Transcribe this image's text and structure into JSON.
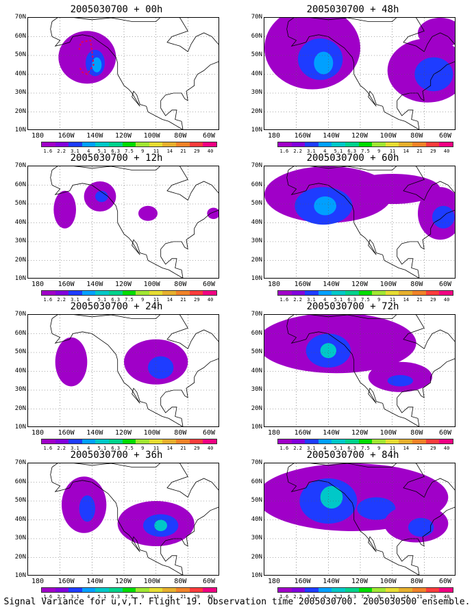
{
  "caption": "Signal Variance for u,v,T. Flight 19. Observation time 2005030700. 2005030500 ensemble.",
  "lat_labels": [
    "70N",
    "60N",
    "50N",
    "40N",
    "30N",
    "20N",
    "10N"
  ],
  "lon_labels": [
    "180",
    "160W",
    "140W",
    "120W",
    "100W",
    "80W",
    "60W"
  ],
  "colorbar": {
    "levels": [
      "1.6",
      "2.2",
      "3.1",
      "4",
      "5.1",
      "6.3",
      "7.5",
      "9",
      "11",
      "14",
      "21",
      "29",
      "40"
    ],
    "colors": [
      "#a000c8",
      "#8200dc",
      "#1e3cff",
      "#00a0ff",
      "#00c8c8",
      "#00d28c",
      "#00dc00",
      "#a0e632",
      "#e6dc32",
      "#e6af2d",
      "#f08228",
      "#fa3c3c",
      "#f00082"
    ]
  },
  "panels": [
    {
      "title": "2005030700 + 00h",
      "blobs": [
        {
          "lon": -143,
          "lat": 49,
          "rx": 18,
          "ry": 14,
          "level": 0
        },
        {
          "lon": -138,
          "lat": 46,
          "rx": 6,
          "ry": 7,
          "level": 2
        },
        {
          "lon": -137,
          "lat": 45,
          "rx": 3,
          "ry": 4,
          "level": 3
        }
      ],
      "track": true
    },
    {
      "title": "2005030700 + 48h",
      "blobs": [
        {
          "lon": -150,
          "lat": 54,
          "rx": 30,
          "ry": 22,
          "level": 0
        },
        {
          "lon": -145,
          "lat": 48,
          "rx": 14,
          "ry": 11,
          "level": 2
        },
        {
          "lon": -143,
          "lat": 46,
          "rx": 6,
          "ry": 6,
          "level": 3
        },
        {
          "lon": -78,
          "lat": 42,
          "rx": 25,
          "ry": 17,
          "level": 0
        },
        {
          "lon": -74,
          "lat": 40,
          "rx": 12,
          "ry": 9,
          "level": 2
        },
        {
          "lon": -70,
          "lat": 62,
          "rx": 14,
          "ry": 8,
          "level": 0
        }
      ]
    },
    {
      "title": "2005030700 + 12h",
      "blobs": [
        {
          "lon": -135,
          "lat": 54,
          "rx": 10,
          "ry": 8,
          "level": 0
        },
        {
          "lon": -134,
          "lat": 54,
          "rx": 4,
          "ry": 3,
          "level": 2
        },
        {
          "lon": -157,
          "lat": 47,
          "rx": 7,
          "ry": 10,
          "level": 0
        },
        {
          "lon": -105,
          "lat": 45,
          "rx": 6,
          "ry": 4,
          "level": 0
        },
        {
          "lon": -64,
          "lat": 45,
          "rx": 4,
          "ry": 3,
          "level": 0
        }
      ]
    },
    {
      "title": "2005030700 + 60h",
      "blobs": [
        {
          "lon": -140,
          "lat": 55,
          "rx": 40,
          "ry": 15,
          "level": 0
        },
        {
          "lon": -143,
          "lat": 49,
          "rx": 18,
          "ry": 10,
          "level": 2
        },
        {
          "lon": -142,
          "lat": 49,
          "rx": 7,
          "ry": 5,
          "level": 3
        },
        {
          "lon": -100,
          "lat": 58,
          "rx": 30,
          "ry": 8,
          "level": 0
        },
        {
          "lon": -70,
          "lat": 45,
          "rx": 14,
          "ry": 14,
          "level": 0
        },
        {
          "lon": -68,
          "lat": 43,
          "rx": 7,
          "ry": 6,
          "level": 2
        }
      ]
    },
    {
      "title": "2005030700 + 24h",
      "blobs": [
        {
          "lon": -153,
          "lat": 45,
          "rx": 10,
          "ry": 13,
          "level": 0
        },
        {
          "lon": -100,
          "lat": 45,
          "rx": 20,
          "ry": 12,
          "level": 0
        },
        {
          "lon": -97,
          "lat": 42,
          "rx": 8,
          "ry": 6,
          "level": 2
        }
      ]
    },
    {
      "title": "2005030700 + 72h",
      "blobs": [
        {
          "lon": -135,
          "lat": 55,
          "rx": 50,
          "ry": 16,
          "level": 0
        },
        {
          "lon": -140,
          "lat": 51,
          "rx": 14,
          "ry": 9,
          "level": 2
        },
        {
          "lon": -140,
          "lat": 51,
          "rx": 5,
          "ry": 4,
          "level": 4
        },
        {
          "lon": -95,
          "lat": 37,
          "rx": 20,
          "ry": 8,
          "level": 0
        },
        {
          "lon": -95,
          "lat": 35,
          "rx": 8,
          "ry": 3,
          "level": 2
        }
      ]
    },
    {
      "title": "2005030700 + 36h",
      "blobs": [
        {
          "lon": -145,
          "lat": 48,
          "rx": 14,
          "ry": 15,
          "level": 0
        },
        {
          "lon": -143,
          "lat": 46,
          "rx": 5,
          "ry": 7,
          "level": 2
        },
        {
          "lon": -100,
          "lat": 38,
          "rx": 24,
          "ry": 12,
          "level": 0
        },
        {
          "lon": -97,
          "lat": 37,
          "rx": 11,
          "ry": 6,
          "level": 2
        },
        {
          "lon": -97,
          "lat": 37,
          "rx": 4,
          "ry": 3,
          "level": 4
        }
      ]
    },
    {
      "title": "2005030700 + 84h",
      "blobs": [
        {
          "lon": -125,
          "lat": 52,
          "rx": 60,
          "ry": 18,
          "level": 0
        },
        {
          "lon": -140,
          "lat": 50,
          "rx": 18,
          "ry": 12,
          "level": 2
        },
        {
          "lon": -138,
          "lat": 52,
          "rx": 7,
          "ry": 6,
          "level": 4
        },
        {
          "lon": -110,
          "lat": 46,
          "rx": 12,
          "ry": 6,
          "level": 2
        },
        {
          "lon": -85,
          "lat": 38,
          "rx": 20,
          "ry": 10,
          "level": 0
        },
        {
          "lon": -82,
          "lat": 36,
          "rx": 8,
          "ry": 5,
          "level": 2
        }
      ]
    }
  ]
}
